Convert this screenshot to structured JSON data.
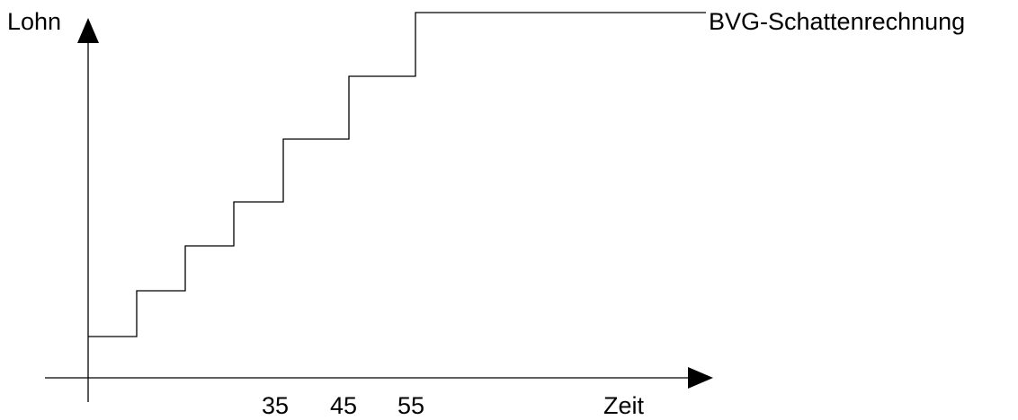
{
  "diagram": {
    "y_axis_label": "Lohn",
    "x_axis_label": "Zeit",
    "x_ticks": [
      "35",
      "45",
      "55"
    ],
    "curve_label": "BVG-Schattenrechnung",
    "line_color": "#000000",
    "background": "#ffffff"
  }
}
